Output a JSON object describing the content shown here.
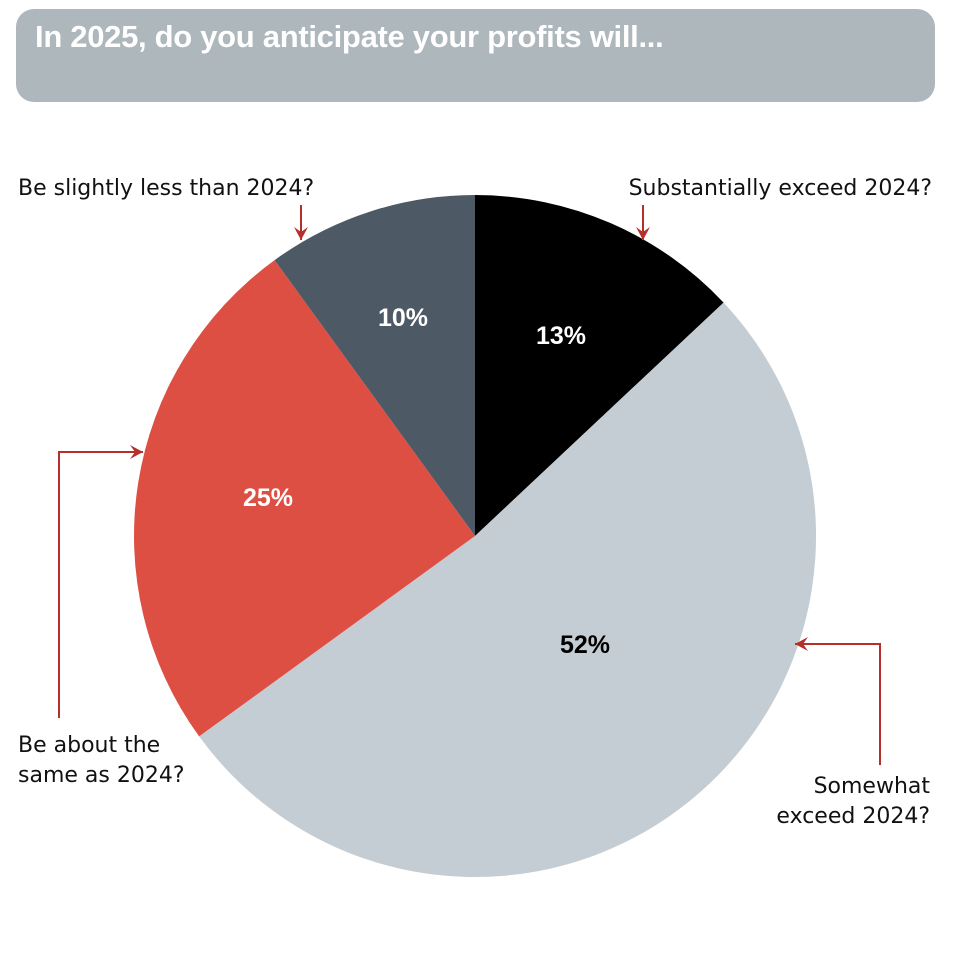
{
  "chart_data": {
    "type": "pie",
    "title": "In 2025, do you anticipate your profits will...",
    "start_angle_deg": 0,
    "direction": "clockwise",
    "slices": [
      {
        "label": "Substantially exceed 2024?",
        "value": 13,
        "display": "13%",
        "color": "#000000",
        "text_color": "#ffffff"
      },
      {
        "label": "Somewhat exceed 2024?",
        "value": 52,
        "display": "52%",
        "color": "#c5cdd4",
        "text_color": "#000000"
      },
      {
        "label": "Be about the same as 2024?",
        "value": 25,
        "display": "25%",
        "color": "#de4f43",
        "text_color": "#ffffff"
      },
      {
        "label": "Be slightly less than 2024?",
        "value": 10,
        "display": "10%",
        "color": "#4d5a65",
        "text_color": "#ffffff"
      }
    ],
    "callout_lines": [
      [
        "Substantially exceed 2024?"
      ],
      [
        "Somewhat",
        "exceed 2024?"
      ],
      [
        "Be about the",
        "same as 2024?"
      ],
      [
        "Be slightly less than 2024?"
      ]
    ],
    "colors": {
      "title_bar": "#aeb7bc",
      "title_text": "#ffffff",
      "leader_line": "#b5302a"
    }
  }
}
